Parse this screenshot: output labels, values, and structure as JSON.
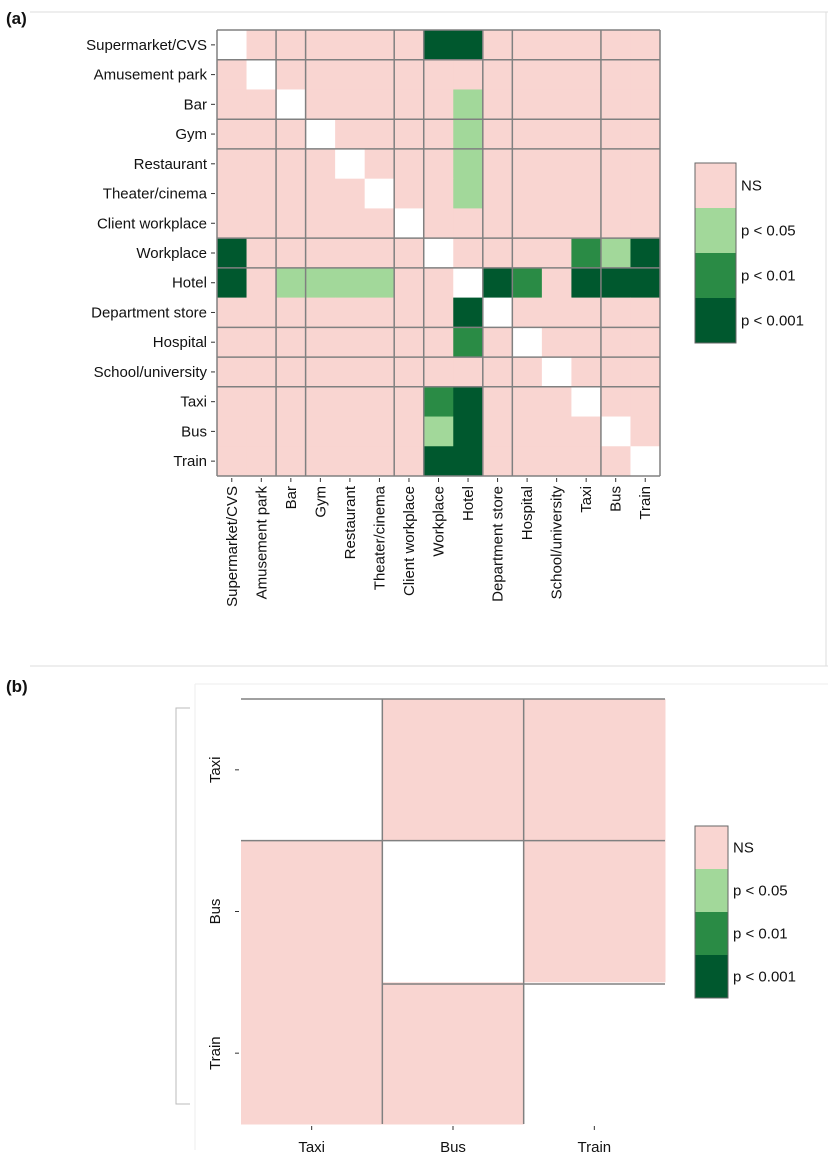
{
  "colors": {
    "NS": "#f9d5d1",
    "p < 0.05": "#a2d89a",
    "p < 0.01": "#2a8b45",
    "p < 0.001": "#00582e",
    "diagonal": "#ffffff",
    "grid": "#808080"
  },
  "chart_data": [
    {
      "panel": "(a)",
      "type": "heatmap",
      "title": "",
      "legend": {
        "placement": "right",
        "entries": [
          "NS",
          "p < 0.05",
          "p < 0.01",
          "p < 0.001"
        ]
      },
      "rows": [
        "Supermarket/CVS",
        "Amusement park",
        "Bar",
        "Gym",
        "Restaurant",
        "Theater/cinema",
        "Client workplace",
        "Workplace",
        "Hotel",
        "Department store",
        "Hospital",
        "School/university",
        "Taxi",
        "Bus",
        "Train"
      ],
      "cols": [
        "Supermarket/CVS",
        "Amusement park",
        "Bar",
        "Gym",
        "Restaurant",
        "Theater/cinema",
        "Client workplace",
        "Workplace",
        "Hotel",
        "Department store",
        "Hospital",
        "School/university",
        "Taxi",
        "Bus",
        "Train"
      ],
      "values": [
        [
          "",
          "NS",
          "NS",
          "NS",
          "NS",
          "NS",
          "NS",
          "p < 0.001",
          "p < 0.001",
          "NS",
          "NS",
          "NS",
          "NS",
          "NS",
          "NS"
        ],
        [
          "NS",
          "",
          "NS",
          "NS",
          "NS",
          "NS",
          "NS",
          "NS",
          "NS",
          "NS",
          "NS",
          "NS",
          "NS",
          "NS",
          "NS"
        ],
        [
          "NS",
          "NS",
          "",
          "NS",
          "NS",
          "NS",
          "NS",
          "NS",
          "p < 0.05",
          "NS",
          "NS",
          "NS",
          "NS",
          "NS",
          "NS"
        ],
        [
          "NS",
          "NS",
          "NS",
          "",
          "NS",
          "NS",
          "NS",
          "NS",
          "p < 0.05",
          "NS",
          "NS",
          "NS",
          "NS",
          "NS",
          "NS"
        ],
        [
          "NS",
          "NS",
          "NS",
          "NS",
          "",
          "NS",
          "NS",
          "NS",
          "p < 0.05",
          "NS",
          "NS",
          "NS",
          "NS",
          "NS",
          "NS"
        ],
        [
          "NS",
          "NS",
          "NS",
          "NS",
          "NS",
          "",
          "NS",
          "NS",
          "p < 0.05",
          "NS",
          "NS",
          "NS",
          "NS",
          "NS",
          "NS"
        ],
        [
          "NS",
          "NS",
          "NS",
          "NS",
          "NS",
          "NS",
          "",
          "NS",
          "NS",
          "NS",
          "NS",
          "NS",
          "NS",
          "NS",
          "NS"
        ],
        [
          "p < 0.001",
          "NS",
          "NS",
          "NS",
          "NS",
          "NS",
          "NS",
          "",
          "NS",
          "NS",
          "NS",
          "NS",
          "p < 0.01",
          "p < 0.05",
          "p < 0.001"
        ],
        [
          "p < 0.001",
          "NS",
          "p < 0.05",
          "p < 0.05",
          "p < 0.05",
          "p < 0.05",
          "NS",
          "NS",
          "",
          "p < 0.001",
          "p < 0.01",
          "NS",
          "p < 0.001",
          "p < 0.001",
          "p < 0.001"
        ],
        [
          "NS",
          "NS",
          "NS",
          "NS",
          "NS",
          "NS",
          "NS",
          "NS",
          "p < 0.001",
          "",
          "NS",
          "NS",
          "NS",
          "NS",
          "NS"
        ],
        [
          "NS",
          "NS",
          "NS",
          "NS",
          "NS",
          "NS",
          "NS",
          "NS",
          "p < 0.01",
          "NS",
          "",
          "NS",
          "NS",
          "NS",
          "NS"
        ],
        [
          "NS",
          "NS",
          "NS",
          "NS",
          "NS",
          "NS",
          "NS",
          "NS",
          "NS",
          "NS",
          "NS",
          "",
          "NS",
          "NS",
          "NS"
        ],
        [
          "NS",
          "NS",
          "NS",
          "NS",
          "NS",
          "NS",
          "NS",
          "p < 0.01",
          "p < 0.001",
          "NS",
          "NS",
          "NS",
          "",
          "NS",
          "NS"
        ],
        [
          "NS",
          "NS",
          "NS",
          "NS",
          "NS",
          "NS",
          "NS",
          "p < 0.05",
          "p < 0.001",
          "NS",
          "NS",
          "NS",
          "NS",
          "",
          "NS"
        ],
        [
          "NS",
          "NS",
          "NS",
          "NS",
          "NS",
          "NS",
          "NS",
          "p < 0.001",
          "p < 0.001",
          "NS",
          "NS",
          "NS",
          "NS",
          "NS",
          ""
        ]
      ]
    },
    {
      "panel": "(b)",
      "type": "heatmap",
      "title": "",
      "legend": {
        "placement": "right",
        "entries": [
          "NS",
          "p < 0.05",
          "p < 0.01",
          "p < 0.001"
        ]
      },
      "rows": [
        "Taxi",
        "Bus",
        "Train"
      ],
      "cols": [
        "Taxi",
        "Bus",
        "Train"
      ],
      "values": [
        [
          "",
          "NS",
          "NS"
        ],
        [
          "NS",
          "",
          "NS"
        ],
        [
          "NS",
          "NS",
          ""
        ]
      ]
    }
  ]
}
